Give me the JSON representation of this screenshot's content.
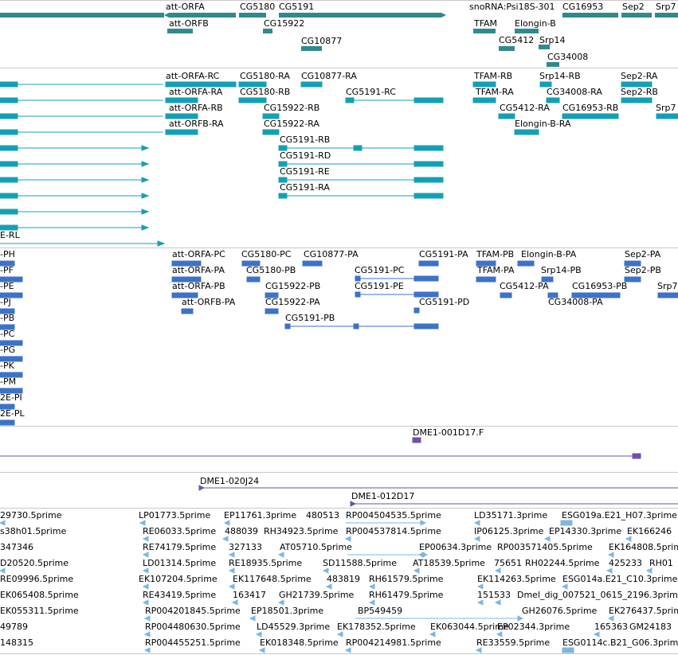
{
  "colors": {
    "gene": "#2f8a8c",
    "transcript": "#14a0b4",
    "protein": "#3c72c8",
    "clone": "#6e4fb0",
    "est": "#7eb6e0"
  },
  "tracks": {
    "genes": {
      "labels": [
        "att-ORFA",
        "att-ORFB",
        "CG5180",
        "CG5191",
        "CG15922",
        "CG10877",
        "snoRNA:Psi18S-301",
        "TFAM",
        "Elongin-B",
        "CG16953",
        "Sep2",
        "Srp7",
        "CG5412",
        "Srp14",
        "CG34008"
      ]
    },
    "transcripts": {
      "labels": [
        "att-ORFA-RC",
        "att-ORFA-RA",
        "att-ORFA-RB",
        "att-ORFB-RA",
        "CG5180-RA",
        "CG5180-RB",
        "CG10877-RA",
        "CG15922-RB",
        "CG15922-RA",
        "CG5191-RC",
        "CG5191-RB",
        "CG5191-RD",
        "CG5191-RE",
        "CG5191-RA",
        "TFAM-RB",
        "TFAM-RA",
        "Srp14-RB",
        "CG34008-RA",
        "CG5412-RA",
        "CG16953-RB",
        "Elongin-B-RA",
        "Sep2-RA",
        "Sep2-RB",
        "Srp7",
        "E-RL"
      ]
    },
    "proteins": {
      "labels": [
        "att-ORFA-PC",
        "att-ORFA-PA",
        "att-ORFA-PB",
        "att-ORFB-PA",
        "CG5180-PC",
        "CG5180-PB",
        "CG10877-PA",
        "CG15922-PB",
        "CG15922-PA",
        "CG5191-PB",
        "CG5191-PA",
        "CG5191-PC",
        "CG5191-PE",
        "CG5191-PD",
        "TFAM-PB",
        "TFAM-PA",
        "Elongin-B-PA",
        "Srp14-PB",
        "CG5412-PA",
        "CG16953-PB",
        "CG34008-PA",
        "Sep2-PA",
        "Sep2-PB",
        "Srp7",
        "-PH",
        "-PF",
        "-PE",
        "-PJ",
        "-PB",
        "-PC",
        "-PG",
        "-PK",
        "-PM",
        "2E-PI",
        "2E-PL"
      ]
    },
    "clones": {
      "labels": [
        "DME1-001D17.F",
        "DME1-020J24",
        "DME1-012D17"
      ]
    },
    "ests": {
      "labels": [
        "29730.5prime",
        "LP01773.5prime",
        "EP11761.3prime",
        "480513",
        "RP004504535.5prime",
        "LD35171.3prime",
        "ESG019a.E21_H07.3prime",
        "s38h01.5prime",
        "RE06033.5prime",
        "488039",
        "RH34923.5prime",
        "RP004537814.5prime",
        "IP06125.3prime",
        "EP14330.3prime",
        "EK166246",
        "347346",
        "RE74179.5prime",
        "327133",
        "AT05710.5prime",
        "EP00634.3prime",
        "RP003571405.5prime",
        "EK164808.5prime",
        "D20520.5prime",
        "LD01314.5prime",
        "RE18935.5prime",
        "SD11588.5prime",
        "AT18539.5prime",
        "75651",
        "RH02244.5prime",
        "425233",
        "RH01",
        "RE09996.5prime",
        "EK107204.5prime",
        "EK117648.5prime",
        "483819",
        "RH61579.5prime",
        "EK114263.5prime",
        "ESG014a.E21_C10.3prime",
        "EK065408.5prime",
        "RE43419.5prime",
        "163417",
        "GH21739.5prime",
        "RH61479.5prime",
        "151533",
        "Dmel_dig_007521_0615_2196.3prime",
        "EK055311.5prime",
        "RP004201845.5prime",
        "EP18501.3prime",
        "BP549459",
        "GH26076.5prime",
        "EK276437.5prime",
        "49789",
        "RP004480630.5prime",
        "LD45529.3prime",
        "EK178352.5prime",
        "EK063044.5prime",
        "EP02344.3prime",
        "165363",
        "GM24183",
        "148315",
        "RP004455251.5prime",
        "EK018348.5prime",
        "RP004214981.5prime",
        "RE33559.5prime",
        "ESG0114c.B21_G06.3prime"
      ]
    }
  }
}
